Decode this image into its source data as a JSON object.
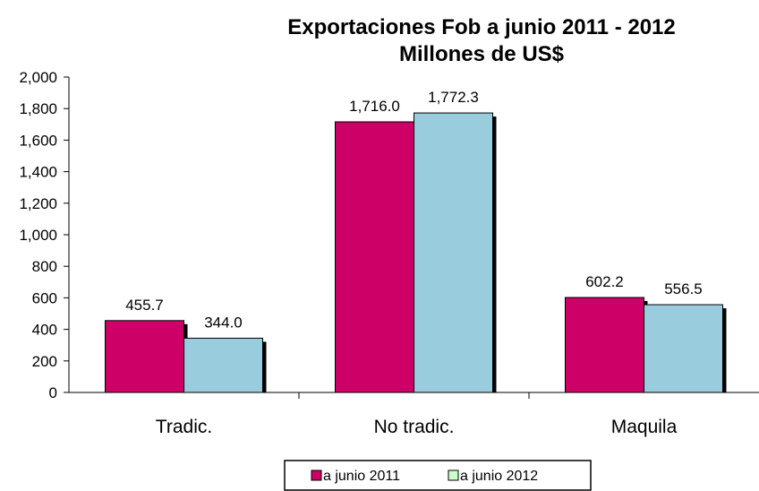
{
  "chart_data": {
    "type": "bar",
    "title": [
      "Exportaciones Fob  a  junio 2011 - 2012",
      "Millones de US$"
    ],
    "categories": [
      "Tradic.",
      "No tradic.",
      "Maquila"
    ],
    "series": [
      {
        "name": "a junio 2011",
        "values": [
          455.7,
          1716.0,
          602.2
        ],
        "labels": [
          "455.7",
          "1,716.0",
          "602.2"
        ],
        "color": "#cc0066"
      },
      {
        "name": "a junio 2012",
        "values": [
          344.0,
          1772.3,
          556.5
        ],
        "labels": [
          "344.0",
          "1,772.3",
          "556.5"
        ],
        "color": "#99ccdd"
      }
    ],
    "legend_swatch_colors": [
      "#cc0066",
      "#ccffcc"
    ],
    "ylim": [
      0,
      2000
    ],
    "yticks": [
      "0",
      "200",
      "400",
      "600",
      "800",
      "1,000",
      "1,200",
      "1,400",
      "1,600",
      "1,800",
      "2,000"
    ],
    "grid": false,
    "legend_position": "bottom"
  }
}
